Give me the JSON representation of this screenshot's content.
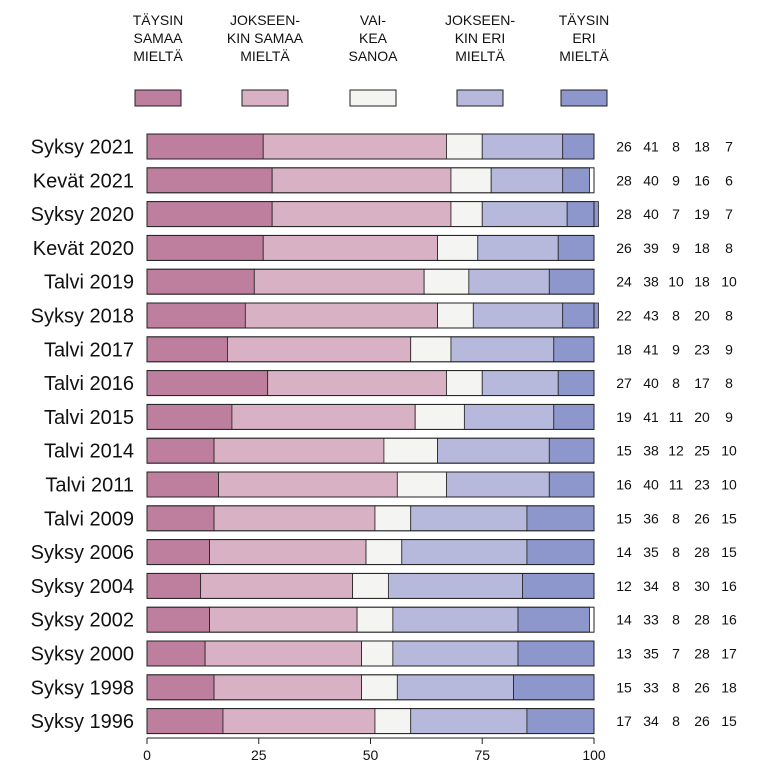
{
  "chart_data": {
    "type": "bar",
    "orientation": "horizontal",
    "stacked": true,
    "title": "",
    "xlabel": "",
    "ylabel": "",
    "xlim": [
      0,
      100
    ],
    "x_ticks": [
      "0",
      "25",
      "50",
      "75",
      "100"
    ],
    "legend_position": "top",
    "categories": [
      "Syksy 2021",
      "Kevät 2021",
      "Syksy 2020",
      "Kevät 2020",
      "Talvi 2019",
      "Syksy 2018",
      "Talvi 2017",
      "Talvi 2016",
      "Talvi 2015",
      "Talvi 2014",
      "Talvi 2011",
      "Talvi 2009",
      "Syksy 2006",
      "Syksy 2004",
      "Syksy 2002",
      "Syksy 2000",
      "Syksy 1998",
      "Syksy 1996"
    ],
    "series": [
      {
        "name": "TÄYSIN SAMAA MIELTÄ",
        "name_lines": [
          "TÄYSIN",
          "SAMAA",
          "MIELTÄ"
        ],
        "color": "#be7f9f",
        "values": [
          26,
          28,
          28,
          26,
          24,
          22,
          18,
          27,
          19,
          15,
          16,
          15,
          14,
          12,
          14,
          13,
          15,
          17
        ]
      },
      {
        "name": "JOKSEEN-KIN SAMAA MIELTÄ",
        "name_lines": [
          "JOKSEEN-",
          "KIN SAMAA",
          "MIELTÄ"
        ],
        "color": "#d9b1c4",
        "values": [
          41,
          40,
          40,
          39,
          38,
          43,
          41,
          40,
          41,
          38,
          40,
          36,
          35,
          34,
          33,
          35,
          33,
          34
        ]
      },
      {
        "name": "VAI-KEA SANOA",
        "name_lines": [
          "VAI-",
          "KEA",
          "SANOA"
        ],
        "color": "#f4f5f3",
        "values": [
          8,
          9,
          7,
          9,
          10,
          8,
          9,
          8,
          11,
          12,
          11,
          8,
          8,
          8,
          8,
          7,
          8,
          8
        ]
      },
      {
        "name": "JOKSEEN-KIN ERI MIELTÄ",
        "name_lines": [
          "JOKSEEN-",
          "KIN ERI",
          "MIELTÄ"
        ],
        "color": "#b6b9dc",
        "values": [
          18,
          16,
          19,
          18,
          18,
          20,
          23,
          17,
          20,
          25,
          23,
          26,
          28,
          30,
          28,
          28,
          26,
          26
        ]
      },
      {
        "name": "TÄYSIN ERI MIELTÄ",
        "name_lines": [
          "TÄYSIN",
          "ERI",
          "MIELTÄ"
        ],
        "color": "#8e97cb",
        "values": [
          7,
          6,
          7,
          8,
          10,
          8,
          9,
          8,
          9,
          10,
          10,
          15,
          15,
          16,
          16,
          17,
          18,
          15
        ]
      }
    ]
  }
}
